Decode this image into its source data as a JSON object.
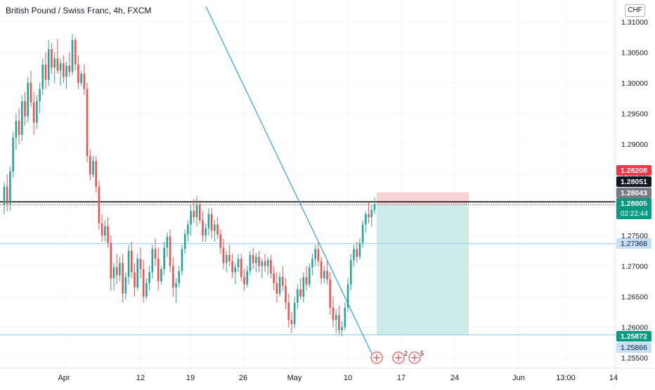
{
  "header": {
    "title": "British Pound / Swiss Franc, 4h, FXCM",
    "currency": "CHF"
  },
  "colors": {
    "up": "#26a69a",
    "down": "#ef5350",
    "trendline": "#2f9fd8",
    "hline_level": "#8ec8ef",
    "profit_zone": "#cdebe8",
    "loss_zone": "#f8d3d3",
    "black_line": "#000000"
  },
  "chart_data": {
    "type": "candlestick",
    "title": "British Pound / Swiss Franc, 4h, FXCM",
    "symbol": "GBPCHF",
    "timeframe": "4h",
    "source": "FXCM",
    "xlabel": "",
    "ylabel": "",
    "ylim": [
      1.2535,
      1.3128
    ],
    "yticks": [
      "1.31000",
      "1.30500",
      "1.30000",
      "1.29500",
      "1.29000",
      "1.28500",
      "1.28000",
      "1.27500",
      "1.27000",
      "1.26500",
      "1.26000",
      "1.25500"
    ],
    "xticks": [
      "Apr",
      "12",
      "19",
      "26",
      "May",
      "10",
      "17",
      "24",
      "Jun",
      "13:00",
      "14"
    ],
    "grid": true,
    "legend": "none",
    "price_tags": [
      {
        "label": "1.28208",
        "value": 1.28208,
        "style": "red"
      },
      {
        "label": "1.28051",
        "value": 1.28051,
        "style": "black"
      },
      {
        "label": "1.28043",
        "value": 1.28043,
        "style": "gray"
      },
      {
        "label": "1.28005",
        "value": 1.28005,
        "style": "teal",
        "sub": "02:22:44"
      },
      {
        "label": "1.27368",
        "value": 1.27368,
        "style": "lightblue"
      },
      {
        "label": "1.25872",
        "value": 1.25872,
        "style": "teal"
      },
      {
        "label": "1.25866",
        "value": 1.25866,
        "style": "lightblue"
      }
    ],
    "horizontal_lines": [
      {
        "value": 1.28051,
        "style": "solid-black"
      },
      {
        "value": 1.28005,
        "style": "dotted-black"
      },
      {
        "value": 1.27368,
        "style": "light-blue"
      },
      {
        "value": 1.25872,
        "style": "light-blue"
      }
    ],
    "trendline": {
      "from": {
        "x": "Mar 28",
        "y": 1.3125
      },
      "to": {
        "x": "May 13",
        "y": 1.254
      }
    },
    "position": {
      "type": "short",
      "entry": 1.28005,
      "stop": 1.28208,
      "target": 1.25872,
      "start": "May 13",
      "end": "May 26"
    },
    "event_markers": [
      {
        "x": "May 13",
        "count": ""
      },
      {
        "x": "May 17",
        "count": "2"
      },
      {
        "x": "May 19",
        "count": "5"
      }
    ],
    "series": [
      {
        "name": "GBPCHF",
        "ohlc": [
          [
            1.28,
            1.2838,
            1.2785,
            1.283
          ],
          [
            1.283,
            1.285,
            1.279,
            1.2802
          ],
          [
            1.2802,
            1.2862,
            1.279,
            1.2855
          ],
          [
            1.2855,
            1.292,
            1.2845,
            1.291
          ],
          [
            1.291,
            1.295,
            1.289,
            1.2938
          ],
          [
            1.2938,
            1.2958,
            1.29,
            1.2915
          ],
          [
            1.2915,
            1.298,
            1.2905,
            1.297
          ],
          [
            1.297,
            1.2985,
            1.293,
            1.2945
          ],
          [
            1.2945,
            1.301,
            1.2935,
            1.3
          ],
          [
            1.3,
            1.302,
            1.296,
            1.2968
          ],
          [
            1.2968,
            1.2985,
            1.2915,
            1.2935
          ],
          [
            1.2935,
            1.298,
            1.2925,
            1.297
          ],
          [
            1.297,
            1.3,
            1.295,
            1.299
          ],
          [
            1.299,
            1.304,
            1.298,
            1.303
          ],
          [
            1.303,
            1.305,
            1.299,
            1.3005
          ],
          [
            1.3005,
            1.307,
            1.2995,
            1.3055
          ],
          [
            1.3055,
            1.3065,
            1.3015,
            1.3025
          ],
          [
            1.3025,
            1.305,
            1.3,
            1.304
          ],
          [
            1.304,
            1.3072,
            1.3015,
            1.302
          ],
          [
            1.302,
            1.304,
            1.2995,
            1.3032
          ],
          [
            1.3032,
            1.3045,
            1.3,
            1.301
          ],
          [
            1.301,
            1.3035,
            1.299,
            1.3028
          ],
          [
            1.3028,
            1.305,
            1.301,
            1.3018
          ],
          [
            1.3018,
            1.308,
            1.3012,
            1.307
          ],
          [
            1.307,
            1.3075,
            1.302,
            1.303
          ],
          [
            1.303,
            1.3045,
            1.299,
            1.3
          ],
          [
            1.3,
            1.302,
            1.2995,
            1.3015
          ],
          [
            1.3015,
            1.303,
            1.298,
            1.299
          ],
          [
            1.299,
            1.3,
            1.287,
            1.288
          ],
          [
            1.288,
            1.2892,
            1.284,
            1.285
          ],
          [
            1.285,
            1.288,
            1.2845,
            1.2872
          ],
          [
            1.2872,
            1.288,
            1.282,
            1.283
          ],
          [
            1.283,
            1.284,
            1.276,
            1.277
          ],
          [
            1.277,
            1.2785,
            1.274,
            1.275
          ],
          [
            1.275,
            1.2775,
            1.274,
            1.2765
          ],
          [
            1.2765,
            1.278,
            1.273,
            1.2738
          ],
          [
            1.2738,
            1.275,
            1.266,
            1.268
          ],
          [
            1.268,
            1.2705,
            1.266,
            1.2698
          ],
          [
            1.2698,
            1.272,
            1.267,
            1.2685
          ],
          [
            1.2685,
            1.2715,
            1.2675,
            1.2705
          ],
          [
            1.2705,
            1.272,
            1.264,
            1.2655
          ],
          [
            1.2655,
            1.269,
            1.2645,
            1.2682
          ],
          [
            1.2682,
            1.2735,
            1.267,
            1.2725
          ],
          [
            1.2725,
            1.274,
            1.268,
            1.269
          ],
          [
            1.269,
            1.2705,
            1.265,
            1.2665
          ],
          [
            1.2665,
            1.272,
            1.266,
            1.2712
          ],
          [
            1.2712,
            1.273,
            1.268,
            1.2695
          ],
          [
            1.2695,
            1.271,
            1.264,
            1.265
          ],
          [
            1.265,
            1.268,
            1.2645,
            1.2672
          ],
          [
            1.2672,
            1.27,
            1.266,
            1.269
          ],
          [
            1.269,
            1.2735,
            1.268,
            1.2728
          ],
          [
            1.2728,
            1.2745,
            1.27,
            1.2712
          ],
          [
            1.2712,
            1.273,
            1.266,
            1.2675
          ],
          [
            1.2675,
            1.27,
            1.267,
            1.2695
          ],
          [
            1.2695,
            1.274,
            1.2685,
            1.273
          ],
          [
            1.273,
            1.2755,
            1.2715,
            1.2748
          ],
          [
            1.2748,
            1.276,
            1.269,
            1.27
          ],
          [
            1.27,
            1.2715,
            1.265,
            1.2665
          ],
          [
            1.2665,
            1.268,
            1.264,
            1.2672
          ],
          [
            1.2672,
            1.27,
            1.2665,
            1.2692
          ],
          [
            1.2692,
            1.2735,
            1.2685,
            1.2728
          ],
          [
            1.2728,
            1.276,
            1.272,
            1.2752
          ],
          [
            1.2752,
            1.2775,
            1.274,
            1.2768
          ],
          [
            1.2768,
            1.28,
            1.275,
            1.279
          ],
          [
            1.279,
            1.281,
            1.277,
            1.278
          ],
          [
            1.278,
            1.2815,
            1.2765,
            1.28
          ],
          [
            1.28,
            1.2808,
            1.277,
            1.2775
          ],
          [
            1.2775,
            1.279,
            1.274,
            1.275
          ],
          [
            1.275,
            1.277,
            1.274,
            1.2762
          ],
          [
            1.2762,
            1.2795,
            1.275,
            1.2785
          ],
          [
            1.2785,
            1.2795,
            1.2745,
            1.2758
          ],
          [
            1.2758,
            1.2775,
            1.274,
            1.2768
          ],
          [
            1.2768,
            1.278,
            1.2745,
            1.2752
          ],
          [
            1.2752,
            1.276,
            1.272,
            1.273
          ],
          [
            1.273,
            1.2745,
            1.2695,
            1.2705
          ],
          [
            1.2705,
            1.2725,
            1.269,
            1.2718
          ],
          [
            1.2718,
            1.2735,
            1.27,
            1.2708
          ],
          [
            1.2708,
            1.272,
            1.268,
            1.269
          ],
          [
            1.269,
            1.2705,
            1.267,
            1.2698
          ],
          [
            1.2698,
            1.272,
            1.269,
            1.2712
          ],
          [
            1.2712,
            1.272,
            1.2675,
            1.2682
          ],
          [
            1.2682,
            1.2695,
            1.266,
            1.267
          ],
          [
            1.267,
            1.27,
            1.2665,
            1.2692
          ],
          [
            1.2692,
            1.2725,
            1.2685,
            1.2718
          ],
          [
            1.2718,
            1.273,
            1.2695,
            1.2705
          ],
          [
            1.2705,
            1.2722,
            1.269,
            1.2715
          ],
          [
            1.2715,
            1.2725,
            1.269,
            1.27
          ],
          [
            1.27,
            1.2712,
            1.268,
            1.2708
          ],
          [
            1.2708,
            1.272,
            1.269,
            1.27
          ],
          [
            1.27,
            1.2715,
            1.2685,
            1.271
          ],
          [
            1.271,
            1.2718,
            1.268,
            1.2688
          ],
          [
            1.2688,
            1.27,
            1.266,
            1.2672
          ],
          [
            1.2672,
            1.269,
            1.264,
            1.2655
          ],
          [
            1.2655,
            1.269,
            1.265,
            1.2682
          ],
          [
            1.2682,
            1.27,
            1.266,
            1.2668
          ],
          [
            1.2668,
            1.268,
            1.263,
            1.264
          ],
          [
            1.264,
            1.2655,
            1.26,
            1.2612
          ],
          [
            1.2612,
            1.2625,
            1.259,
            1.2605
          ],
          [
            1.2605,
            1.265,
            1.2598,
            1.264
          ],
          [
            1.264,
            1.267,
            1.263,
            1.2662
          ],
          [
            1.2662,
            1.268,
            1.2645,
            1.265
          ],
          [
            1.265,
            1.269,
            1.264,
            1.2682
          ],
          [
            1.2682,
            1.27,
            1.266,
            1.267
          ],
          [
            1.267,
            1.2705,
            1.2665,
            1.2698
          ],
          [
            1.2698,
            1.272,
            1.2685,
            1.2712
          ],
          [
            1.2712,
            1.2735,
            1.27,
            1.2728
          ],
          [
            1.2728,
            1.274,
            1.27,
            1.2708
          ],
          [
            1.2708,
            1.2715,
            1.267,
            1.268
          ],
          [
            1.268,
            1.27,
            1.2672,
            1.2692
          ],
          [
            1.2692,
            1.2708,
            1.267,
            1.2678
          ],
          [
            1.2678,
            1.269,
            1.262,
            1.2632
          ],
          [
            1.2632,
            1.265,
            1.26,
            1.2612
          ],
          [
            1.2612,
            1.263,
            1.259,
            1.262
          ],
          [
            1.262,
            1.2635,
            1.2588,
            1.2595
          ],
          [
            1.2595,
            1.261,
            1.2585,
            1.26
          ],
          [
            1.26,
            1.264,
            1.2595,
            1.2632
          ],
          [
            1.2632,
            1.268,
            1.2625,
            1.267
          ],
          [
            1.267,
            1.272,
            1.266,
            1.271
          ],
          [
            1.271,
            1.2735,
            1.27,
            1.2728
          ],
          [
            1.2728,
            1.274,
            1.2705,
            1.2715
          ],
          [
            1.2715,
            1.2745,
            1.271,
            1.2738
          ],
          [
            1.2738,
            1.2775,
            1.273,
            1.2768
          ],
          [
            1.2768,
            1.279,
            1.2755,
            1.2785
          ],
          [
            1.2785,
            1.2805,
            1.277,
            1.278
          ],
          [
            1.278,
            1.28,
            1.2765,
            1.2792
          ],
          [
            1.2792,
            1.2812,
            1.2785,
            1.28
          ]
        ]
      }
    ]
  }
}
